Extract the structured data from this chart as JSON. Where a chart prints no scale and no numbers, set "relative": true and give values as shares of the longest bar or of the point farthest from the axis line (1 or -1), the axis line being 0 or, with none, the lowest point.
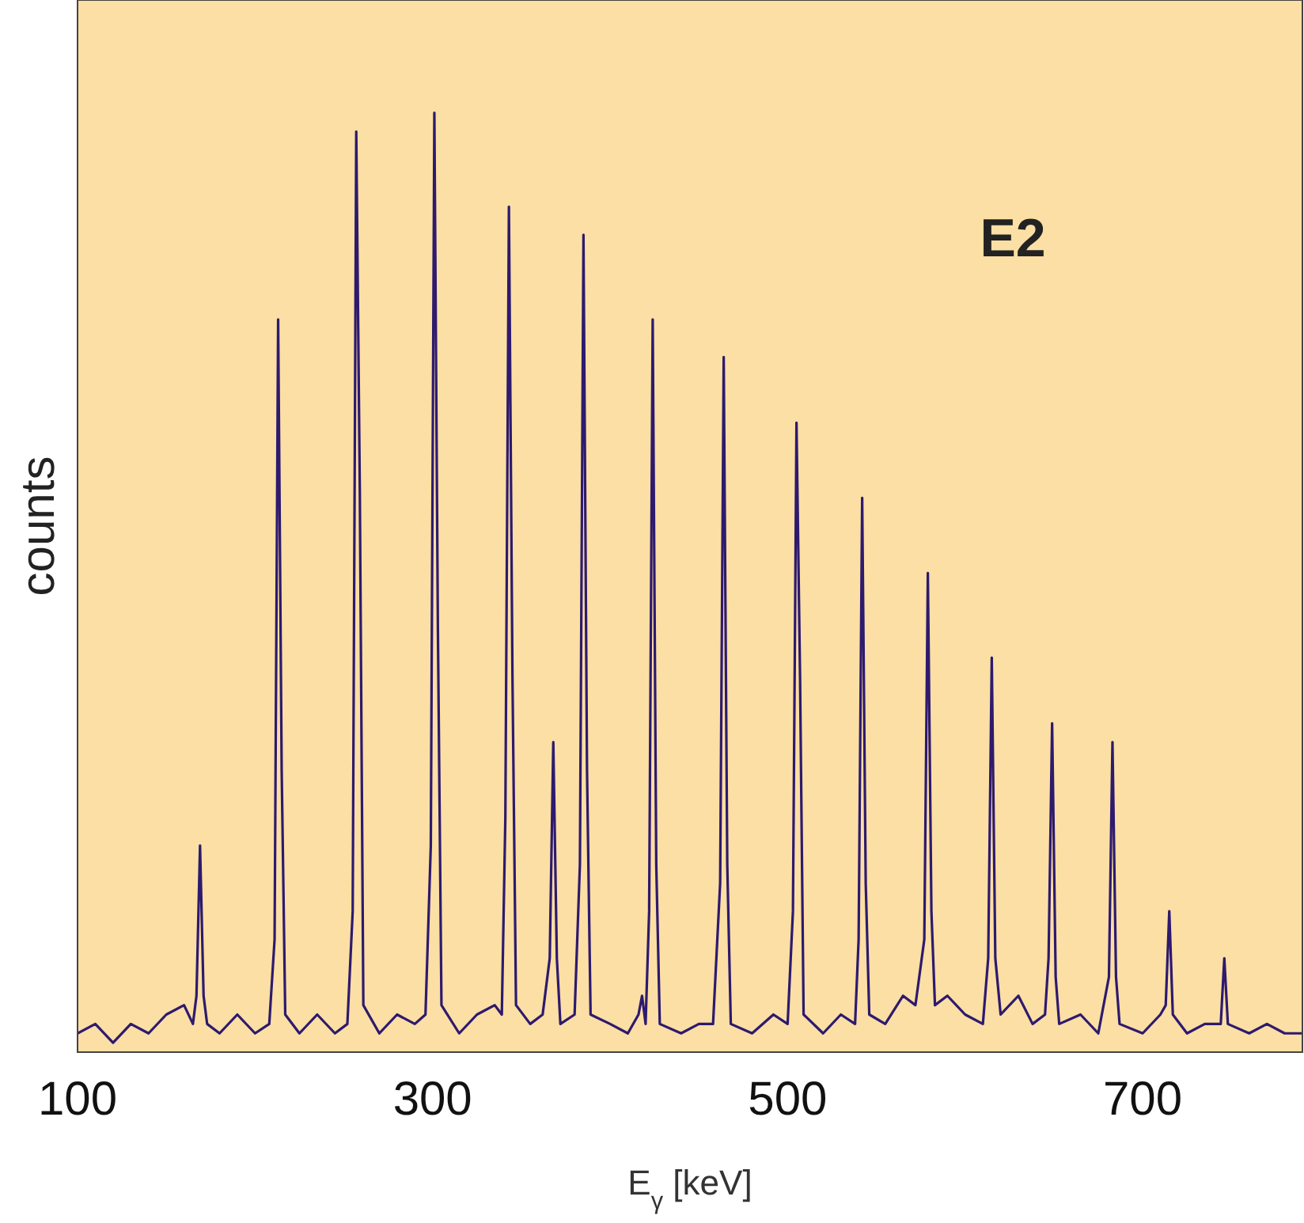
{
  "chart_data": {
    "type": "line",
    "relative": true,
    "xlabel": "E$_{γ}$ [keV]",
    "ylabel": "counts",
    "annotations": [
      "E2"
    ],
    "xlim": [
      100,
      790
    ],
    "xticks": [
      100,
      300,
      500,
      700
    ],
    "marker": "none",
    "line_style": "solid",
    "grid": false,
    "series": [
      {
        "color": "#2e1a6e",
        "x": [
          100,
          110,
          120,
          130,
          140,
          150,
          160,
          165,
          167,
          169,
          171,
          173,
          180,
          190,
          200,
          208,
          211,
          213,
          215,
          217,
          225,
          235,
          245,
          252,
          255,
          257,
          259,
          261,
          270,
          280,
          290,
          296,
          299,
          301,
          303,
          305,
          315,
          325,
          335,
          339,
          341,
          343,
          345,
          347,
          355,
          362,
          366,
          368,
          370,
          372,
          380,
          383,
          385,
          387,
          389,
          400,
          410,
          416,
          418,
          420,
          422,
          424,
          426,
          428,
          440,
          450,
          458,
          462,
          464,
          466,
          468,
          480,
          492,
          500,
          503,
          505,
          507,
          509,
          520,
          530,
          538,
          540,
          542,
          544,
          546,
          555,
          565,
          572,
          577,
          579,
          581,
          583,
          590,
          600,
          610,
          613,
          615,
          617,
          620,
          630,
          638,
          645,
          647,
          649,
          651,
          653,
          665,
          675,
          681,
          683,
          685,
          687,
          700,
          710,
          713,
          715,
          717,
          725,
          735,
          744,
          746,
          748,
          760,
          770,
          780,
          790
        ],
        "values": [
          0.02,
          0.03,
          0.01,
          0.03,
          0.02,
          0.04,
          0.05,
          0.03,
          0.06,
          0.22,
          0.06,
          0.03,
          0.02,
          0.04,
          0.02,
          0.03,
          0.12,
          0.78,
          0.3,
          0.04,
          0.02,
          0.04,
          0.02,
          0.03,
          0.15,
          0.98,
          0.6,
          0.05,
          0.02,
          0.04,
          0.03,
          0.04,
          0.22,
          1.0,
          0.45,
          0.05,
          0.02,
          0.04,
          0.05,
          0.04,
          0.25,
          0.9,
          0.4,
          0.05,
          0.03,
          0.04,
          0.1,
          0.33,
          0.1,
          0.03,
          0.04,
          0.2,
          0.87,
          0.3,
          0.04,
          0.03,
          0.02,
          0.04,
          0.06,
          0.03,
          0.15,
          0.78,
          0.2,
          0.03,
          0.02,
          0.03,
          0.03,
          0.18,
          0.74,
          0.2,
          0.03,
          0.02,
          0.04,
          0.03,
          0.15,
          0.67,
          0.4,
          0.04,
          0.02,
          0.04,
          0.03,
          0.12,
          0.59,
          0.18,
          0.04,
          0.03,
          0.06,
          0.05,
          0.12,
          0.51,
          0.15,
          0.05,
          0.06,
          0.04,
          0.03,
          0.1,
          0.42,
          0.1,
          0.04,
          0.06,
          0.03,
          0.04,
          0.1,
          0.35,
          0.08,
          0.03,
          0.04,
          0.02,
          0.08,
          0.33,
          0.08,
          0.03,
          0.02,
          0.04,
          0.05,
          0.15,
          0.04,
          0.02,
          0.03,
          0.03,
          0.1,
          0.03,
          0.02,
          0.03,
          0.02,
          0.02
        ]
      }
    ]
  }
}
